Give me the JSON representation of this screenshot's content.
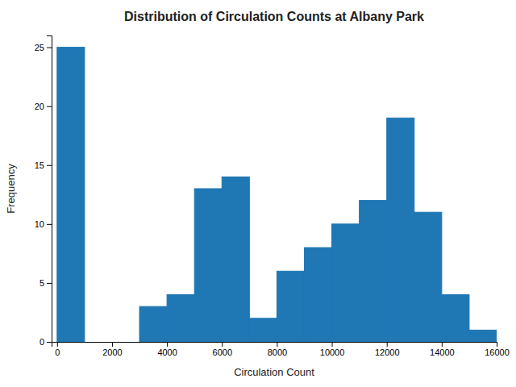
{
  "chart_data": {
    "type": "histogram",
    "title": "Distribution of Circulation Counts at Albany Park",
    "x_label": "Circulation Count",
    "y_label": "Frequency",
    "bins": [
      0,
      1000,
      2000,
      3000,
      4000,
      5000,
      6000,
      7000,
      8000,
      9000,
      10000,
      11000,
      12000,
      13000,
      14000,
      15000,
      16000
    ],
    "values": [
      25,
      0,
      0,
      3,
      4,
      13,
      14,
      2,
      6,
      8,
      10,
      12,
      19,
      11,
      4,
      1
    ],
    "color": "#1f77b4",
    "xlim": [
      -200,
      16000
    ],
    "ylim": [
      0,
      26
    ],
    "xticks": [
      0,
      2000,
      4000,
      6000,
      8000,
      10000,
      12000,
      14000,
      16000
    ],
    "yticks": [
      0,
      5,
      10,
      15,
      20,
      25
    ],
    "grid": false
  }
}
